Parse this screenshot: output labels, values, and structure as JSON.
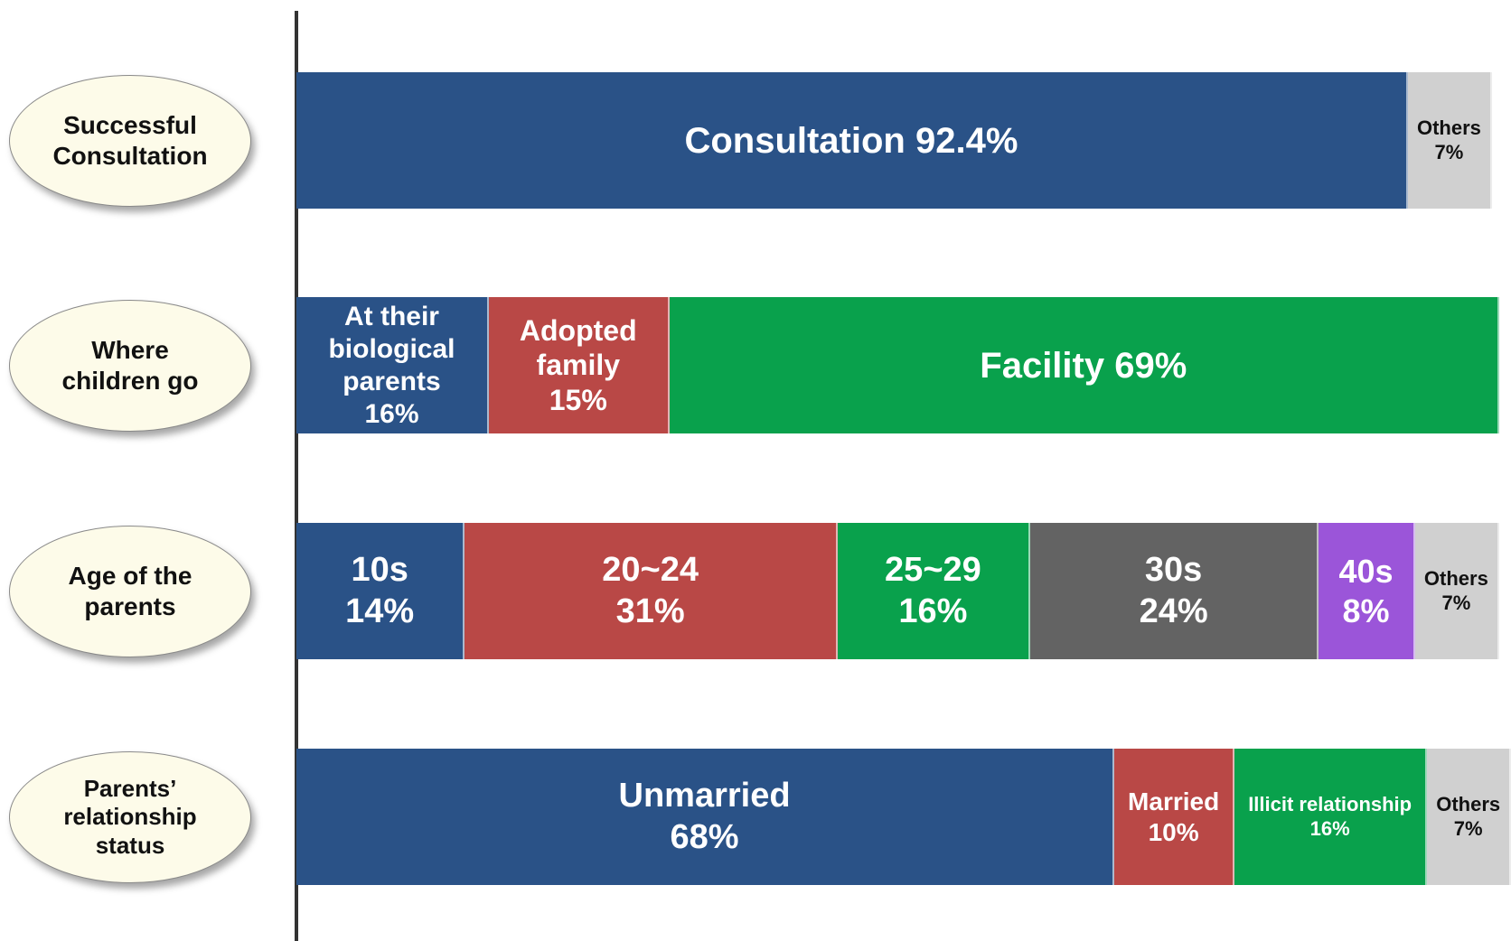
{
  "chart_data": {
    "type": "stacked-bar",
    "rows": [
      {
        "label": "Successful Consultation",
        "segments": [
          {
            "label": "Consultation",
            "value": 92.4,
            "value_label": "92.4%",
            "color": "#2a5287"
          },
          {
            "label": "Others",
            "value": 7,
            "value_label": "7%",
            "color": "#d0d0d0"
          }
        ]
      },
      {
        "label": "Where children go",
        "segments": [
          {
            "label": "At their biological parents",
            "value": 16,
            "value_label": "16%",
            "color": "#2a5287"
          },
          {
            "label": "Adopted family",
            "value": 15,
            "value_label": "15%",
            "color": "#b94846"
          },
          {
            "label": "Facility",
            "value": 69,
            "value_label": "69%",
            "color": "#09a14c"
          }
        ]
      },
      {
        "label": "Age of the parents",
        "segments": [
          {
            "label": "10s",
            "value": 14,
            "value_label": "14%",
            "color": "#2a5287"
          },
          {
            "label": "20~24",
            "value": 31,
            "value_label": "31%",
            "color": "#b94846"
          },
          {
            "label": "25~29",
            "value": 16,
            "value_label": "16%",
            "color": "#09a14c"
          },
          {
            "label": "30s",
            "value": 24,
            "value_label": "24%",
            "color": "#636363"
          },
          {
            "label": "40s",
            "value": 8,
            "value_label": "8%",
            "color": "#9b55d9"
          },
          {
            "label": "Others",
            "value": 7,
            "value_label": "7%",
            "color": "#d0d0d0"
          }
        ]
      },
      {
        "label": "Parents’ relationship status",
        "segments": [
          {
            "label": "Unmarried",
            "value": 68,
            "value_label": "68%",
            "color": "#2a5287"
          },
          {
            "label": "Married",
            "value": 10,
            "value_label": "10%",
            "color": "#b94846"
          },
          {
            "label": "Illicit relationship",
            "value": 16,
            "value_label": "16%",
            "color": "#09a14c"
          },
          {
            "label": "Others",
            "value": 7,
            "value_label": "7%",
            "color": "#d0d0d0"
          }
        ]
      }
    ]
  }
}
